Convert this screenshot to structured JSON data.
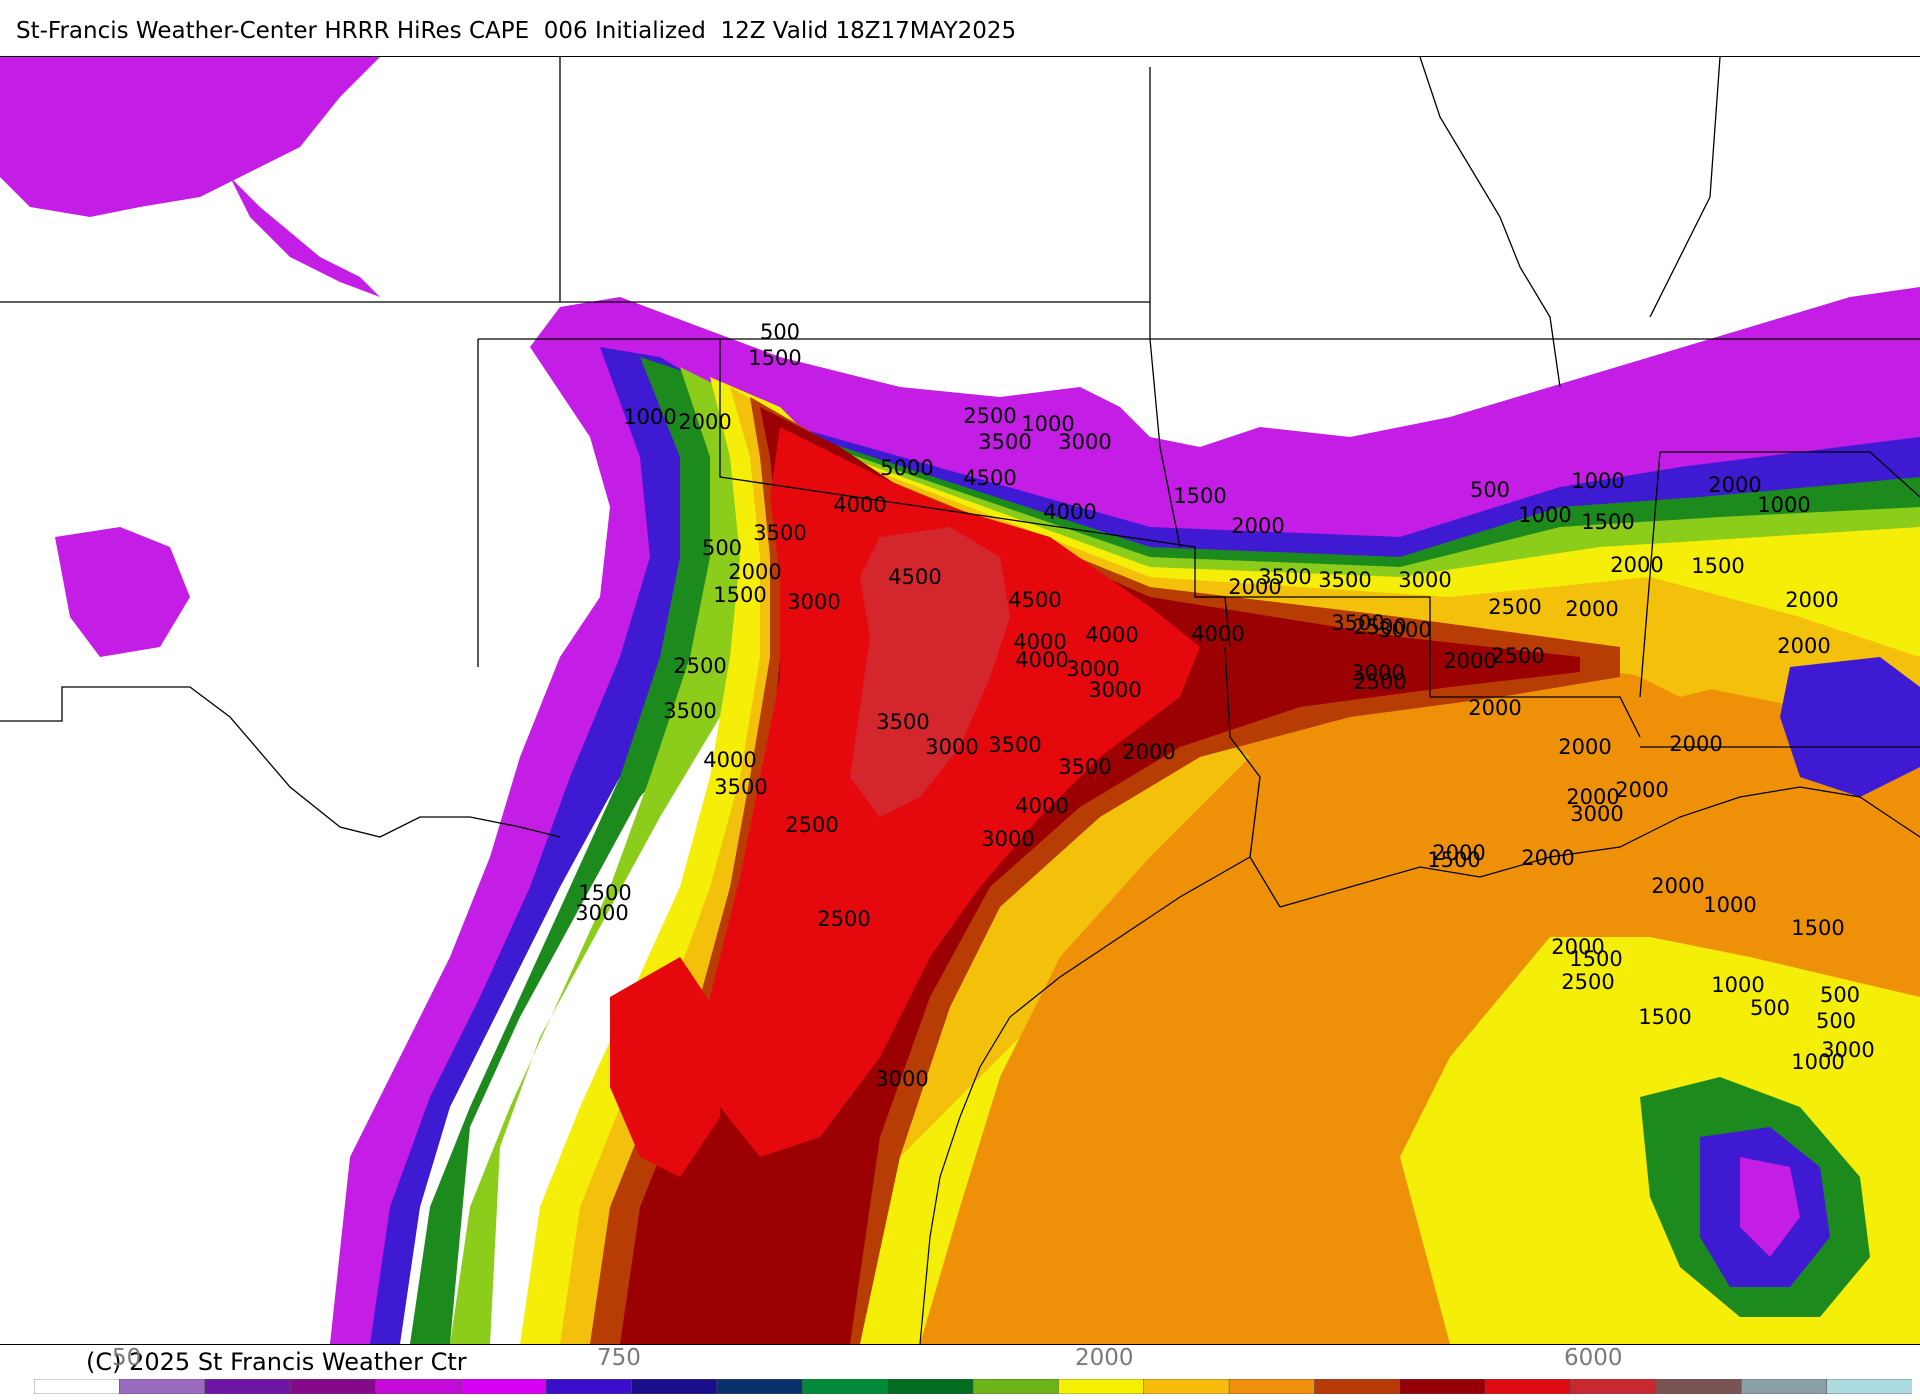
{
  "title": "St-Francis Weather-Center HRRR HiRes CAPE  006 Initialized  12Z Valid 18Z17MAY2025",
  "copyright": "(C) 2025 St Francis Weather Ctr",
  "legend": {
    "tick_labels": [
      "50",
      "750",
      "2000",
      "6000"
    ],
    "colors": [
      "#ffffff",
      "#9a6cc1",
      "#6f15a5",
      "#850a8a",
      "#c40ad9",
      "#d600f5",
      "#3a0fcc",
      "#1a0e8a",
      "#08316e",
      "#008a3a",
      "#006e1e",
      "#6ab41a",
      "#f3f000",
      "#f7bc0c",
      "#ef8f0c",
      "#b83a06",
      "#950006",
      "#e00b10",
      "#c8282e",
      "#7a5454",
      "#8aa0a6",
      "#a9dbe0"
    ]
  },
  "colors": {
    "purple": "#c41de6",
    "blue": "#3e1ad3",
    "green": "#1d8a1d",
    "lime": "#8ccc1b",
    "yellow": "#f5ee08",
    "gold": "#f3c10c",
    "orange": "#ee9109",
    "rust": "#b83d05",
    "darkred": "#9b0003",
    "red": "#e5090d",
    "pink": "#d4262d"
  },
  "contour_labels": [
    "500",
    "1500",
    "1000",
    "2000",
    "2500",
    "1000",
    "3500",
    "3000",
    "5000",
    "4500",
    "4000",
    "4000",
    "3500",
    "4500",
    "1500",
    "2000",
    "500",
    "2000",
    "1500",
    "4500",
    "3000",
    "4000",
    "4000",
    "4000",
    "3500",
    "3000",
    "2500",
    "3000",
    "3500",
    "3000",
    "3500",
    "2500",
    "2000",
    "2000",
    "1000",
    "500",
    "1000",
    "1500",
    "2000",
    "1000",
    "2000",
    "2000",
    "2000",
    "1500",
    "2000",
    "2000",
    "2000",
    "2000",
    "2500",
    "3500",
    "4000",
    "3500",
    "3000",
    "4000",
    "3500",
    "3000",
    "3000",
    "3500",
    "3500",
    "4000",
    "3000",
    "2000",
    "2500",
    "2500",
    "1500",
    "1000",
    "500",
    "3000",
    "1000",
    "500",
    "2000",
    "2500",
    "1500",
    "3000",
    "3000",
    "2500",
    "2500",
    "3000",
    "2000",
    "2000",
    "2000",
    "2000",
    "1500",
    "1000",
    "1500",
    "500",
    "1500",
    "2000",
    "2000"
  ]
}
